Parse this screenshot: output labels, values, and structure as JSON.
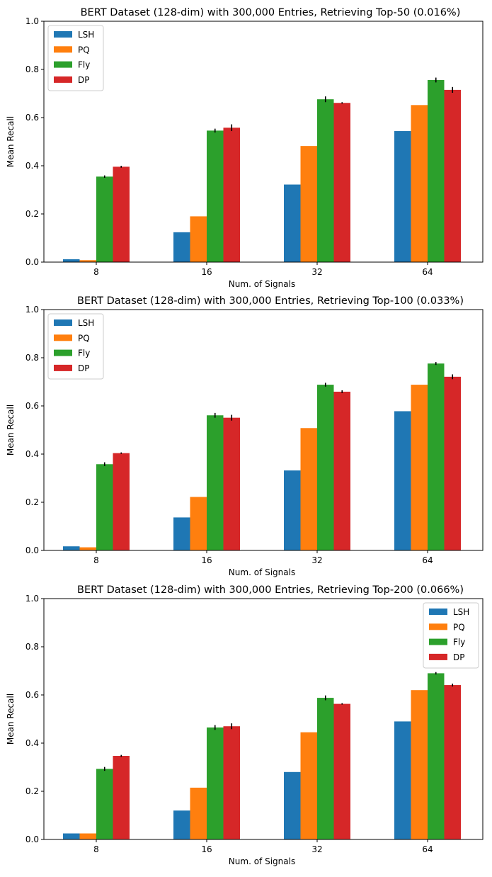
{
  "chart_data": [
    {
      "type": "bar",
      "title": "BERT Dataset (128-dim) with 300,000 Entries, Retrieving Top-50 (0.016%)",
      "xlabel": "Num. of Signals",
      "ylabel": "Mean Recall",
      "ylim": [
        0,
        1.0
      ],
      "yticks": [
        "0.0",
        "0.2",
        "0.4",
        "0.6",
        "0.8",
        "1.0"
      ],
      "categories": [
        "8",
        "16",
        "32",
        "64"
      ],
      "legend_position": "top-left",
      "series": [
        {
          "name": "LSH",
          "values": [
            0.012,
            0.124,
            0.322,
            0.544
          ],
          "errors": [
            0,
            0,
            0,
            0
          ]
        },
        {
          "name": "PQ",
          "values": [
            0.008,
            0.19,
            0.482,
            0.652
          ],
          "errors": [
            0,
            0,
            0,
            0
          ]
        },
        {
          "name": "Fly",
          "values": [
            0.355,
            0.546,
            0.676,
            0.756
          ],
          "errors": [
            0.005,
            0.008,
            0.012,
            0.01
          ]
        },
        {
          "name": "DP",
          "values": [
            0.396,
            0.558,
            0.661,
            0.715
          ],
          "errors": [
            0.004,
            0.014,
            0.003,
            0.012
          ]
        }
      ]
    },
    {
      "type": "bar",
      "title": "BERT Dataset (128-dim) with 300,000 Entries, Retrieving Top-100 (0.033%)",
      "xlabel": "Num. of Signals",
      "ylabel": "Mean Recall",
      "ylim": [
        0,
        1.0
      ],
      "yticks": [
        "0.0",
        "0.2",
        "0.4",
        "0.6",
        "0.8",
        "1.0"
      ],
      "categories": [
        "8",
        "16",
        "32",
        "64"
      ],
      "legend_position": "top-left",
      "series": [
        {
          "name": "LSH",
          "values": [
            0.017,
            0.137,
            0.332,
            0.578
          ],
          "errors": [
            0,
            0,
            0,
            0
          ]
        },
        {
          "name": "PQ",
          "values": [
            0.013,
            0.222,
            0.508,
            0.688
          ],
          "errors": [
            0,
            0,
            0,
            0
          ]
        },
        {
          "name": "Fly",
          "values": [
            0.358,
            0.561,
            0.688,
            0.776
          ],
          "errors": [
            0.008,
            0.01,
            0.008,
            0.006
          ]
        },
        {
          "name": "DP",
          "values": [
            0.404,
            0.551,
            0.659,
            0.721
          ],
          "errors": [
            0.003,
            0.012,
            0.006,
            0.01
          ]
        }
      ]
    },
    {
      "type": "bar",
      "title": "BERT Dataset (128-dim) with 300,000 Entries, Retrieving Top-200 (0.066%)",
      "xlabel": "Num. of Signals",
      "ylabel": "Mean Recall",
      "ylim": [
        0,
        1.0
      ],
      "yticks": [
        "0.0",
        "0.2",
        "0.4",
        "0.6",
        "0.8",
        "1.0"
      ],
      "categories": [
        "8",
        "16",
        "32",
        "64"
      ],
      "legend_position": "top-right",
      "series": [
        {
          "name": "LSH",
          "values": [
            0.025,
            0.12,
            0.28,
            0.49
          ],
          "errors": [
            0,
            0,
            0,
            0
          ]
        },
        {
          "name": "PQ",
          "values": [
            0.025,
            0.215,
            0.445,
            0.62
          ],
          "errors": [
            0,
            0,
            0,
            0
          ]
        },
        {
          "name": "Fly",
          "values": [
            0.293,
            0.465,
            0.588,
            0.69
          ],
          "errors": [
            0.008,
            0.01,
            0.01,
            0.005
          ]
        },
        {
          "name": "DP",
          "values": [
            0.347,
            0.47,
            0.563,
            0.641
          ],
          "errors": [
            0.004,
            0.012,
            0.003,
            0.006
          ]
        }
      ]
    }
  ],
  "colors": {
    "LSH": "#1f77b4",
    "PQ": "#ff7f0e",
    "Fly": "#2ca02c",
    "DP": "#d62728"
  }
}
